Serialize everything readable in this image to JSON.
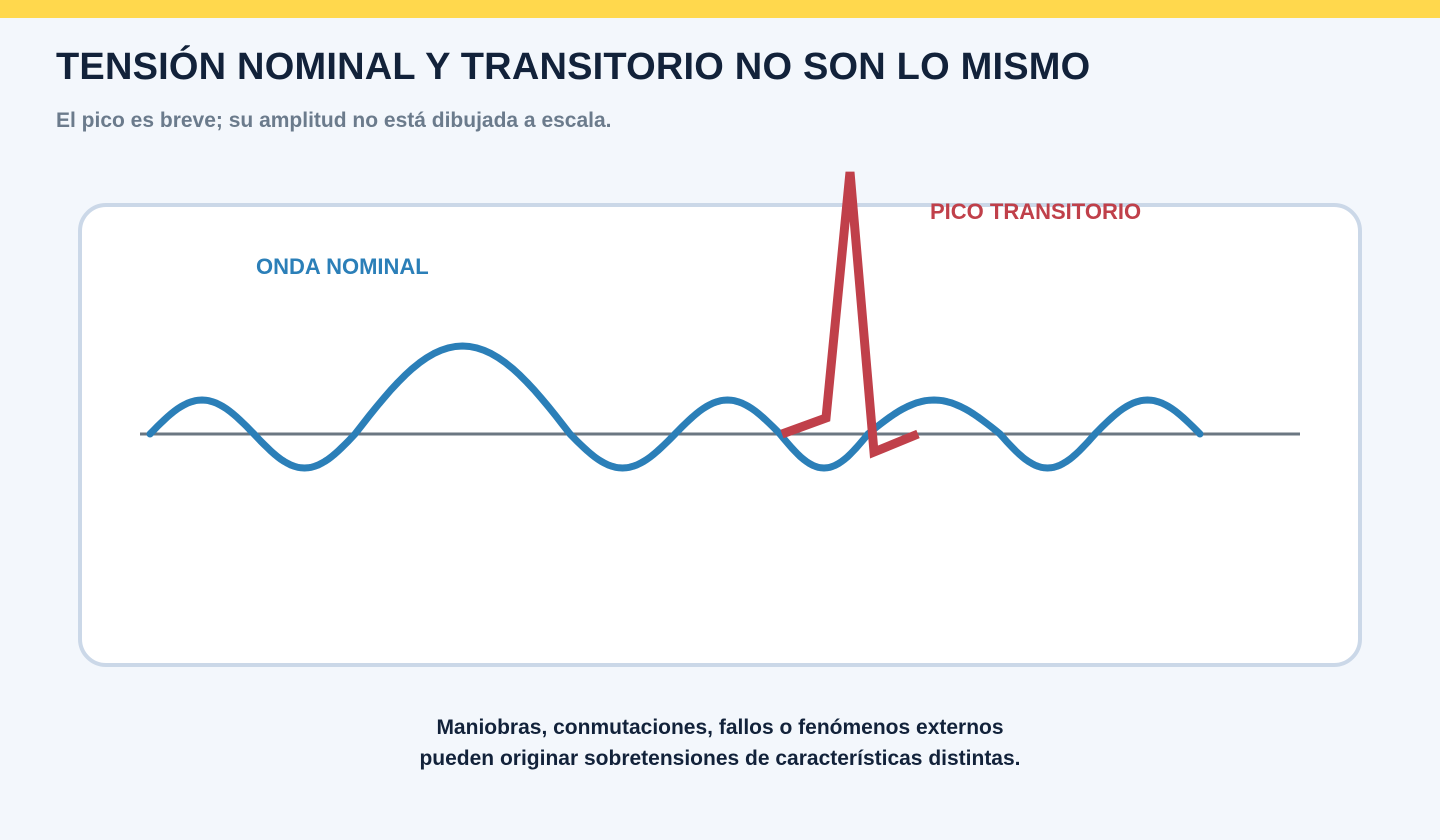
{
  "header": {
    "title": "TENSIÓN NOMINAL Y TRANSITORIO NO SON LO MISMO",
    "subtitle": "El pico es breve; su amplitud no está dibujada a escala."
  },
  "diagram": {
    "nominal_label": "ONDA NOMINAL",
    "transient_label": "PICO TRANSITORIO"
  },
  "caption": {
    "line1": "Maniobras, conmutaciones, fallos o fenómenos externos",
    "line2": "pueden originar sobretensiones de características distintas."
  },
  "colors": {
    "accent_bar": "#ffd84d",
    "title": "#12223a",
    "subtitle": "#6b7b8c",
    "nominal_wave": "#2b7fb8",
    "transient_spike": "#c0404a",
    "baseline": "#6b7782",
    "panel_border": "#cbd8e8",
    "panel_fill": "#ffffff"
  }
}
